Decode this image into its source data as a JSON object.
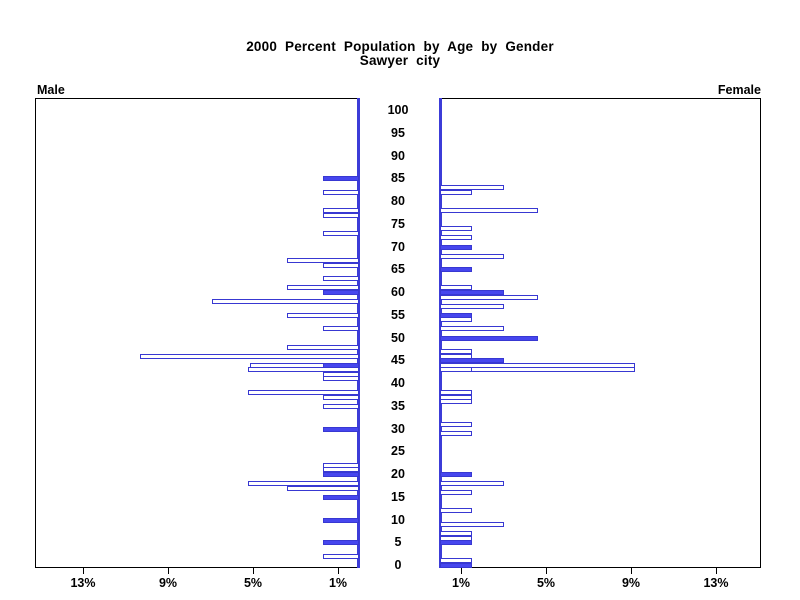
{
  "chart_data": {
    "type": "bar",
    "subtype": "population_pyramid",
    "title": "2000 Percent Population by Age by Gender",
    "subtitle": "Sawyer city",
    "panels": {
      "left": "Male",
      "right": "Female"
    },
    "colors": {
      "bar_fill": "#4646ee",
      "bar_border": "#3838d2",
      "baseline": "#3c3cd8",
      "frame": "#000000",
      "text": "#000000",
      "background": "#ffffff"
    },
    "age_axis": {
      "range": [
        0,
        100
      ],
      "tick_labels": [
        "0",
        "5",
        "10",
        "15",
        "20",
        "25",
        "30",
        "35",
        "40",
        "45",
        "50",
        "55",
        "60",
        "65",
        "70",
        "75",
        "80",
        "85",
        "90",
        "95",
        "100"
      ]
    },
    "pct_axis": {
      "max_pct": 15.25,
      "male_tick_values": [
        13,
        9,
        5,
        1
      ],
      "male_tick_labels": [
        "13%",
        "9%",
        "5%",
        "1%"
      ],
      "female_tick_values": [
        1,
        5,
        9,
        13
      ],
      "female_tick_labels": [
        "1%",
        "5%",
        "9%",
        "13%"
      ]
    },
    "male": [
      {
        "age": 85,
        "segments": [
          {
            "pct": 1.7,
            "style": "solid"
          }
        ]
      },
      {
        "age": 82,
        "segments": [
          {
            "pct": 1.7,
            "style": "outline"
          }
        ]
      },
      {
        "age": 78,
        "segments": [
          {
            "pct": 1.7,
            "style": "outline"
          }
        ]
      },
      {
        "age": 77,
        "segments": [
          {
            "pct": 1.7,
            "style": "outline"
          }
        ]
      },
      {
        "age": 73,
        "segments": [
          {
            "pct": 1.7,
            "style": "outline"
          }
        ]
      },
      {
        "age": 67,
        "segments": [
          {
            "pct": 3.4,
            "style": "outline"
          }
        ]
      },
      {
        "age": 66,
        "segments": [
          {
            "pct": 1.7,
            "style": "outline"
          }
        ]
      },
      {
        "age": 63,
        "segments": [
          {
            "pct": 1.7,
            "style": "outline"
          }
        ]
      },
      {
        "age": 61,
        "segments": [
          {
            "pct": 3.4,
            "style": "outline"
          }
        ]
      },
      {
        "age": 60,
        "segments": [
          {
            "pct": 1.7,
            "style": "solid"
          }
        ]
      },
      {
        "age": 58,
        "segments": [
          {
            "pct": 6.9,
            "style": "outline"
          }
        ]
      },
      {
        "age": 55,
        "segments": [
          {
            "pct": 3.4,
            "style": "outline"
          }
        ]
      },
      {
        "age": 52,
        "segments": [
          {
            "pct": 1.7,
            "style": "outline"
          }
        ]
      },
      {
        "age": 48,
        "segments": [
          {
            "pct": 3.4,
            "style": "outline"
          }
        ]
      },
      {
        "age": 46,
        "segments": [
          {
            "pct": 10.3,
            "style": "outline"
          }
        ]
      },
      {
        "age": 44,
        "segments": [
          {
            "pct": 1.7,
            "style": "solid"
          },
          {
            "pct": 3.5,
            "style": "outline"
          }
        ]
      },
      {
        "age": 43,
        "segments": [
          {
            "pct": 5.2,
            "style": "outline"
          }
        ]
      },
      {
        "age": 42,
        "segments": [
          {
            "pct": 1.7,
            "style": "outline"
          }
        ]
      },
      {
        "age": 41,
        "segments": [
          {
            "pct": 1.7,
            "style": "outline"
          }
        ]
      },
      {
        "age": 38,
        "segments": [
          {
            "pct": 5.2,
            "style": "outline"
          }
        ]
      },
      {
        "age": 37,
        "segments": [
          {
            "pct": 1.7,
            "style": "outline"
          }
        ]
      },
      {
        "age": 35,
        "segments": [
          {
            "pct": 1.7,
            "style": "outline"
          }
        ]
      },
      {
        "age": 30,
        "segments": [
          {
            "pct": 1.7,
            "style": "solid"
          }
        ]
      },
      {
        "age": 22,
        "segments": [
          {
            "pct": 1.7,
            "style": "outline"
          }
        ]
      },
      {
        "age": 21,
        "segments": [
          {
            "pct": 1.7,
            "style": "outline"
          }
        ]
      },
      {
        "age": 20,
        "segments": [
          {
            "pct": 1.7,
            "style": "solid"
          }
        ]
      },
      {
        "age": 18,
        "segments": [
          {
            "pct": 5.2,
            "style": "outline"
          }
        ]
      },
      {
        "age": 17,
        "segments": [
          {
            "pct": 3.4,
            "style": "outline"
          }
        ]
      },
      {
        "age": 15,
        "segments": [
          {
            "pct": 1.7,
            "style": "solid"
          }
        ]
      },
      {
        "age": 10,
        "segments": [
          {
            "pct": 1.7,
            "style": "solid"
          }
        ]
      },
      {
        "age": 5,
        "segments": [
          {
            "pct": 1.7,
            "style": "solid"
          }
        ]
      },
      {
        "age": 2,
        "segments": [
          {
            "pct": 1.7,
            "style": "outline"
          }
        ]
      }
    ],
    "female": [
      {
        "age": 83,
        "segments": [
          {
            "pct": 3.0,
            "style": "outline"
          }
        ]
      },
      {
        "age": 82,
        "segments": [
          {
            "pct": 1.5,
            "style": "outline"
          }
        ]
      },
      {
        "age": 78,
        "segments": [
          {
            "pct": 4.6,
            "style": "outline"
          }
        ]
      },
      {
        "age": 74,
        "segments": [
          {
            "pct": 1.5,
            "style": "outline"
          }
        ]
      },
      {
        "age": 72,
        "segments": [
          {
            "pct": 1.5,
            "style": "outline"
          }
        ]
      },
      {
        "age": 70,
        "segments": [
          {
            "pct": 1.5,
            "style": "solid"
          }
        ]
      },
      {
        "age": 68,
        "segments": [
          {
            "pct": 3.0,
            "style": "outline"
          }
        ]
      },
      {
        "age": 65,
        "segments": [
          {
            "pct": 1.5,
            "style": "solid"
          }
        ]
      },
      {
        "age": 61,
        "segments": [
          {
            "pct": 1.5,
            "style": "outline"
          }
        ]
      },
      {
        "age": 60,
        "segments": [
          {
            "pct": 3.0,
            "style": "solid"
          }
        ]
      },
      {
        "age": 59,
        "segments": [
          {
            "pct": 4.6,
            "style": "outline"
          }
        ]
      },
      {
        "age": 57,
        "segments": [
          {
            "pct": 3.0,
            "style": "outline"
          }
        ]
      },
      {
        "age": 55,
        "segments": [
          {
            "pct": 1.5,
            "style": "solid"
          }
        ]
      },
      {
        "age": 54,
        "segments": [
          {
            "pct": 1.5,
            "style": "outline"
          }
        ]
      },
      {
        "age": 52,
        "segments": [
          {
            "pct": 3.0,
            "style": "outline"
          }
        ]
      },
      {
        "age": 50,
        "segments": [
          {
            "pct": 4.6,
            "style": "solid"
          }
        ]
      },
      {
        "age": 47,
        "segments": [
          {
            "pct": 1.5,
            "style": "outline"
          }
        ]
      },
      {
        "age": 46,
        "segments": [
          {
            "pct": 1.5,
            "style": "outline"
          }
        ]
      },
      {
        "age": 45,
        "segments": [
          {
            "pct": 3.0,
            "style": "solid"
          }
        ]
      },
      {
        "age": 44,
        "segments": [
          {
            "pct": 9.2,
            "style": "outline"
          }
        ]
      },
      {
        "age": 43,
        "segments": [
          {
            "pct": 1.5,
            "style": "outline"
          },
          {
            "pct": 7.7,
            "style": "outline"
          }
        ]
      },
      {
        "age": 38,
        "segments": [
          {
            "pct": 1.5,
            "style": "outline"
          }
        ]
      },
      {
        "age": 37,
        "segments": [
          {
            "pct": 1.5,
            "style": "outline"
          }
        ]
      },
      {
        "age": 36,
        "segments": [
          {
            "pct": 1.5,
            "style": "outline"
          }
        ]
      },
      {
        "age": 31,
        "segments": [
          {
            "pct": 1.5,
            "style": "outline"
          }
        ]
      },
      {
        "age": 29,
        "segments": [
          {
            "pct": 1.5,
            "style": "outline"
          }
        ]
      },
      {
        "age": 20,
        "segments": [
          {
            "pct": 1.5,
            "style": "solid"
          }
        ]
      },
      {
        "age": 18,
        "segments": [
          {
            "pct": 3.0,
            "style": "outline"
          }
        ]
      },
      {
        "age": 16,
        "segments": [
          {
            "pct": 1.5,
            "style": "outline"
          }
        ]
      },
      {
        "age": 12,
        "segments": [
          {
            "pct": 1.5,
            "style": "outline"
          }
        ]
      },
      {
        "age": 9,
        "segments": [
          {
            "pct": 3.0,
            "style": "outline"
          }
        ]
      },
      {
        "age": 7,
        "segments": [
          {
            "pct": 1.5,
            "style": "outline"
          }
        ]
      },
      {
        "age": 6,
        "segments": [
          {
            "pct": 1.5,
            "style": "outline"
          }
        ]
      },
      {
        "age": 5,
        "segments": [
          {
            "pct": 1.5,
            "style": "solid"
          }
        ]
      },
      {
        "age": 1,
        "segments": [
          {
            "pct": 1.5,
            "style": "outline"
          }
        ]
      },
      {
        "age": 0,
        "segments": [
          {
            "pct": 1.5,
            "style": "solid"
          }
        ]
      }
    ]
  }
}
